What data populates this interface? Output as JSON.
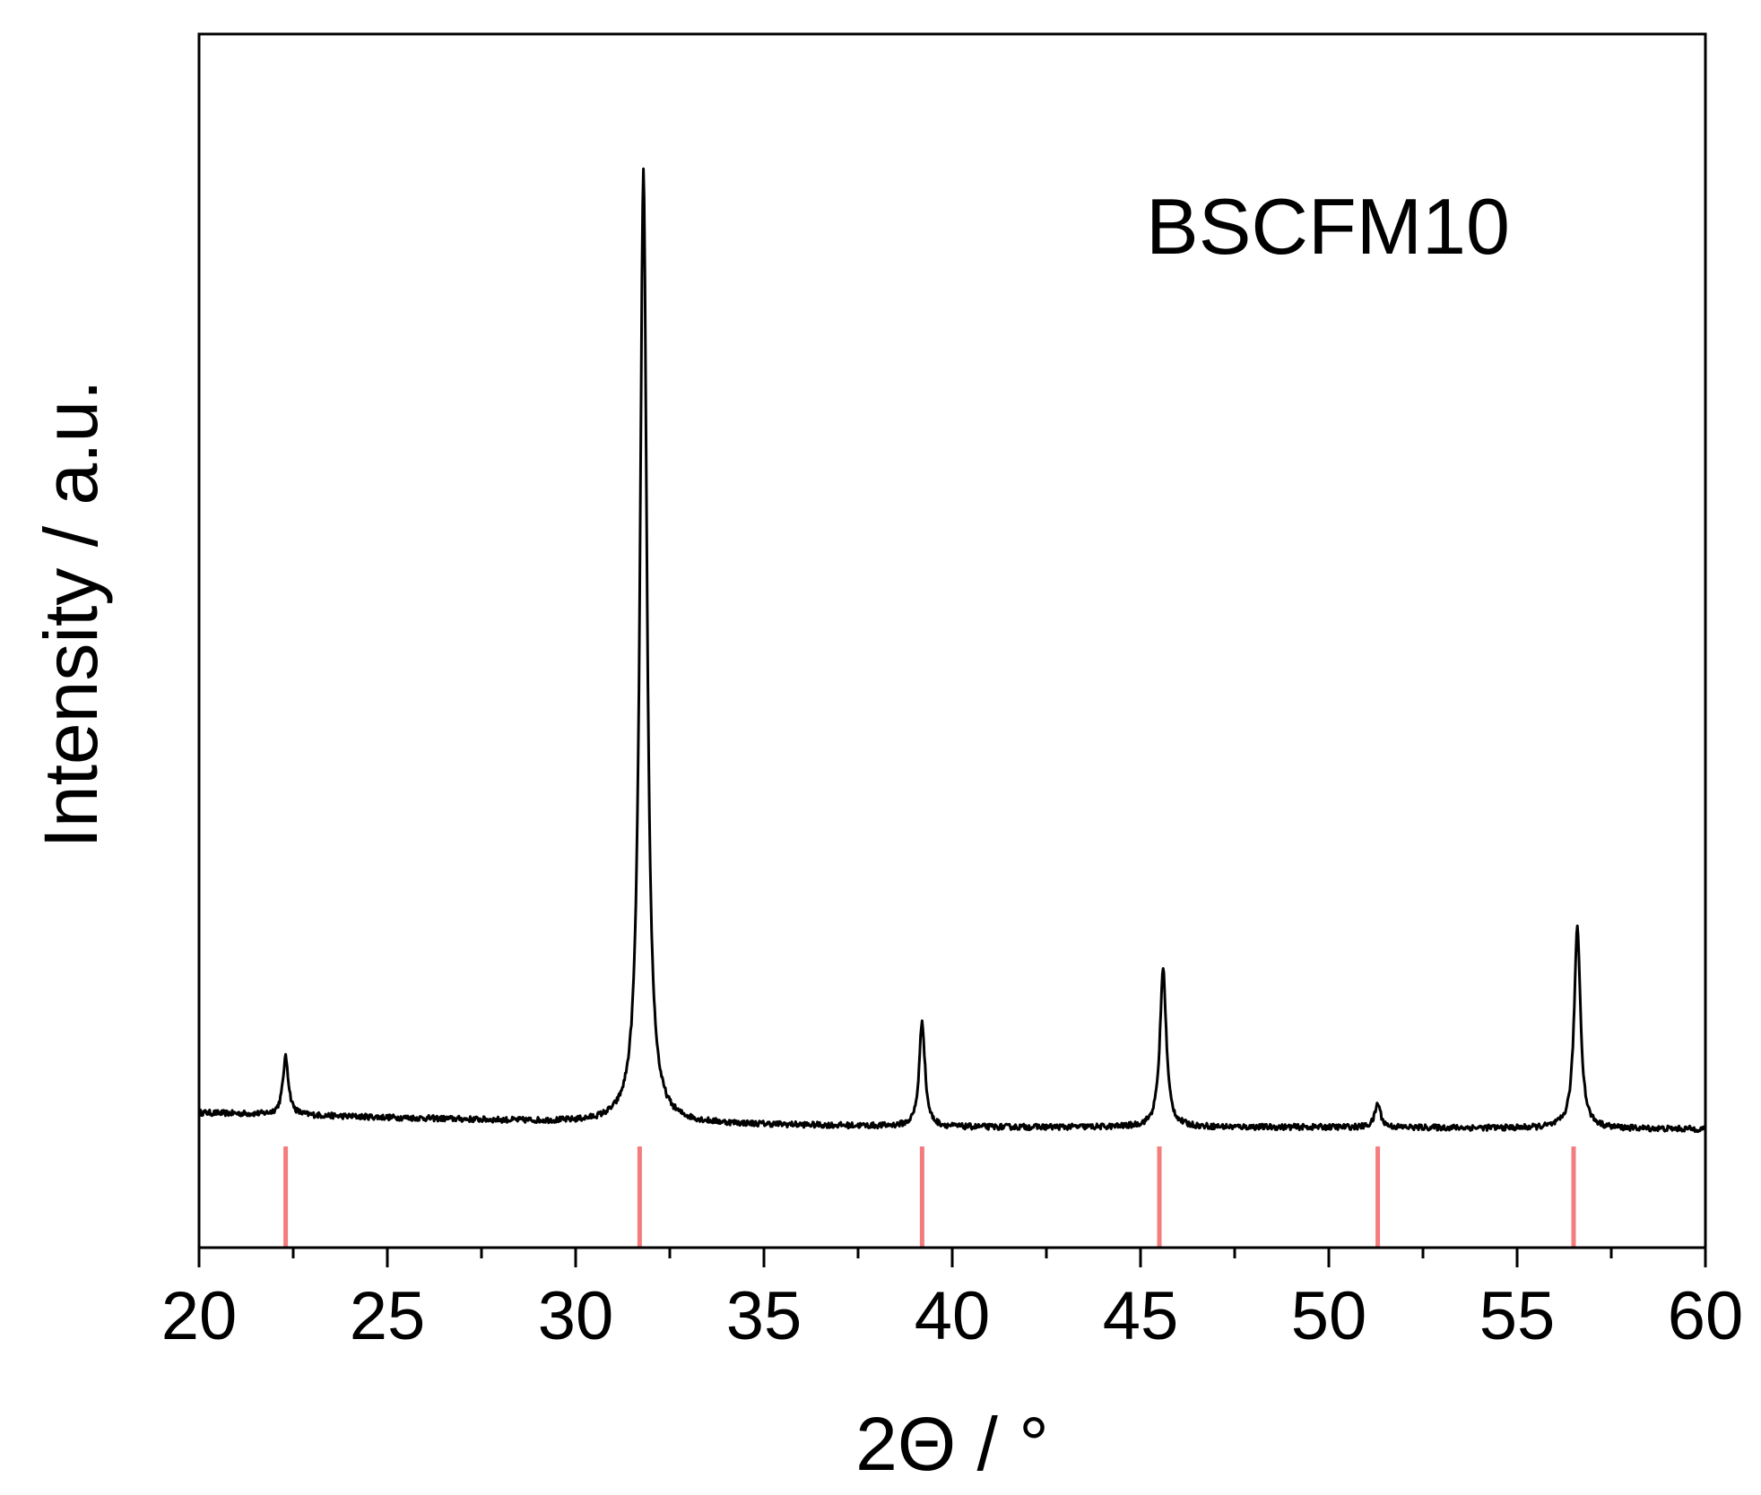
{
  "chart_data": {
    "type": "line",
    "title": "",
    "annotation": "BSCFM10",
    "xlabel": "2Θ / °",
    "ylabel": "Intensity / a.u.",
    "xlim": [
      20,
      60
    ],
    "ylim": [
      -0.14,
      1.12
    ],
    "y_ticks_shown": false,
    "xticks": [
      20,
      25,
      30,
      35,
      40,
      45,
      50,
      55,
      60
    ],
    "xtick_labels": [
      "20",
      "25",
      "30",
      "35",
      "40",
      "45",
      "50",
      "55",
      "60"
    ],
    "grid": false,
    "series": [
      {
        "color": "#000000",
        "baseline": [
          [
            20,
            0.0
          ],
          [
            30,
            -0.01
          ],
          [
            40,
            -0.015
          ],
          [
            50,
            -0.015
          ],
          [
            60,
            -0.017
          ]
        ],
        "peaks": [
          {
            "x": 22.3,
            "height": 0.06,
            "width": 0.09
          },
          {
            "x": 31.8,
            "height": 0.99,
            "width": 0.11
          },
          {
            "x": 39.2,
            "height": 0.11,
            "width": 0.09
          },
          {
            "x": 45.6,
            "height": 0.165,
            "width": 0.1
          },
          {
            "x": 51.3,
            "height": 0.025,
            "width": 0.09
          },
          {
            "x": 56.6,
            "height": 0.21,
            "width": 0.1
          }
        ]
      }
    ],
    "reference_lines": {
      "color": "#f47c7c",
      "x": [
        22.3,
        31.7,
        39.2,
        45.5,
        51.3,
        56.5
      ]
    }
  }
}
